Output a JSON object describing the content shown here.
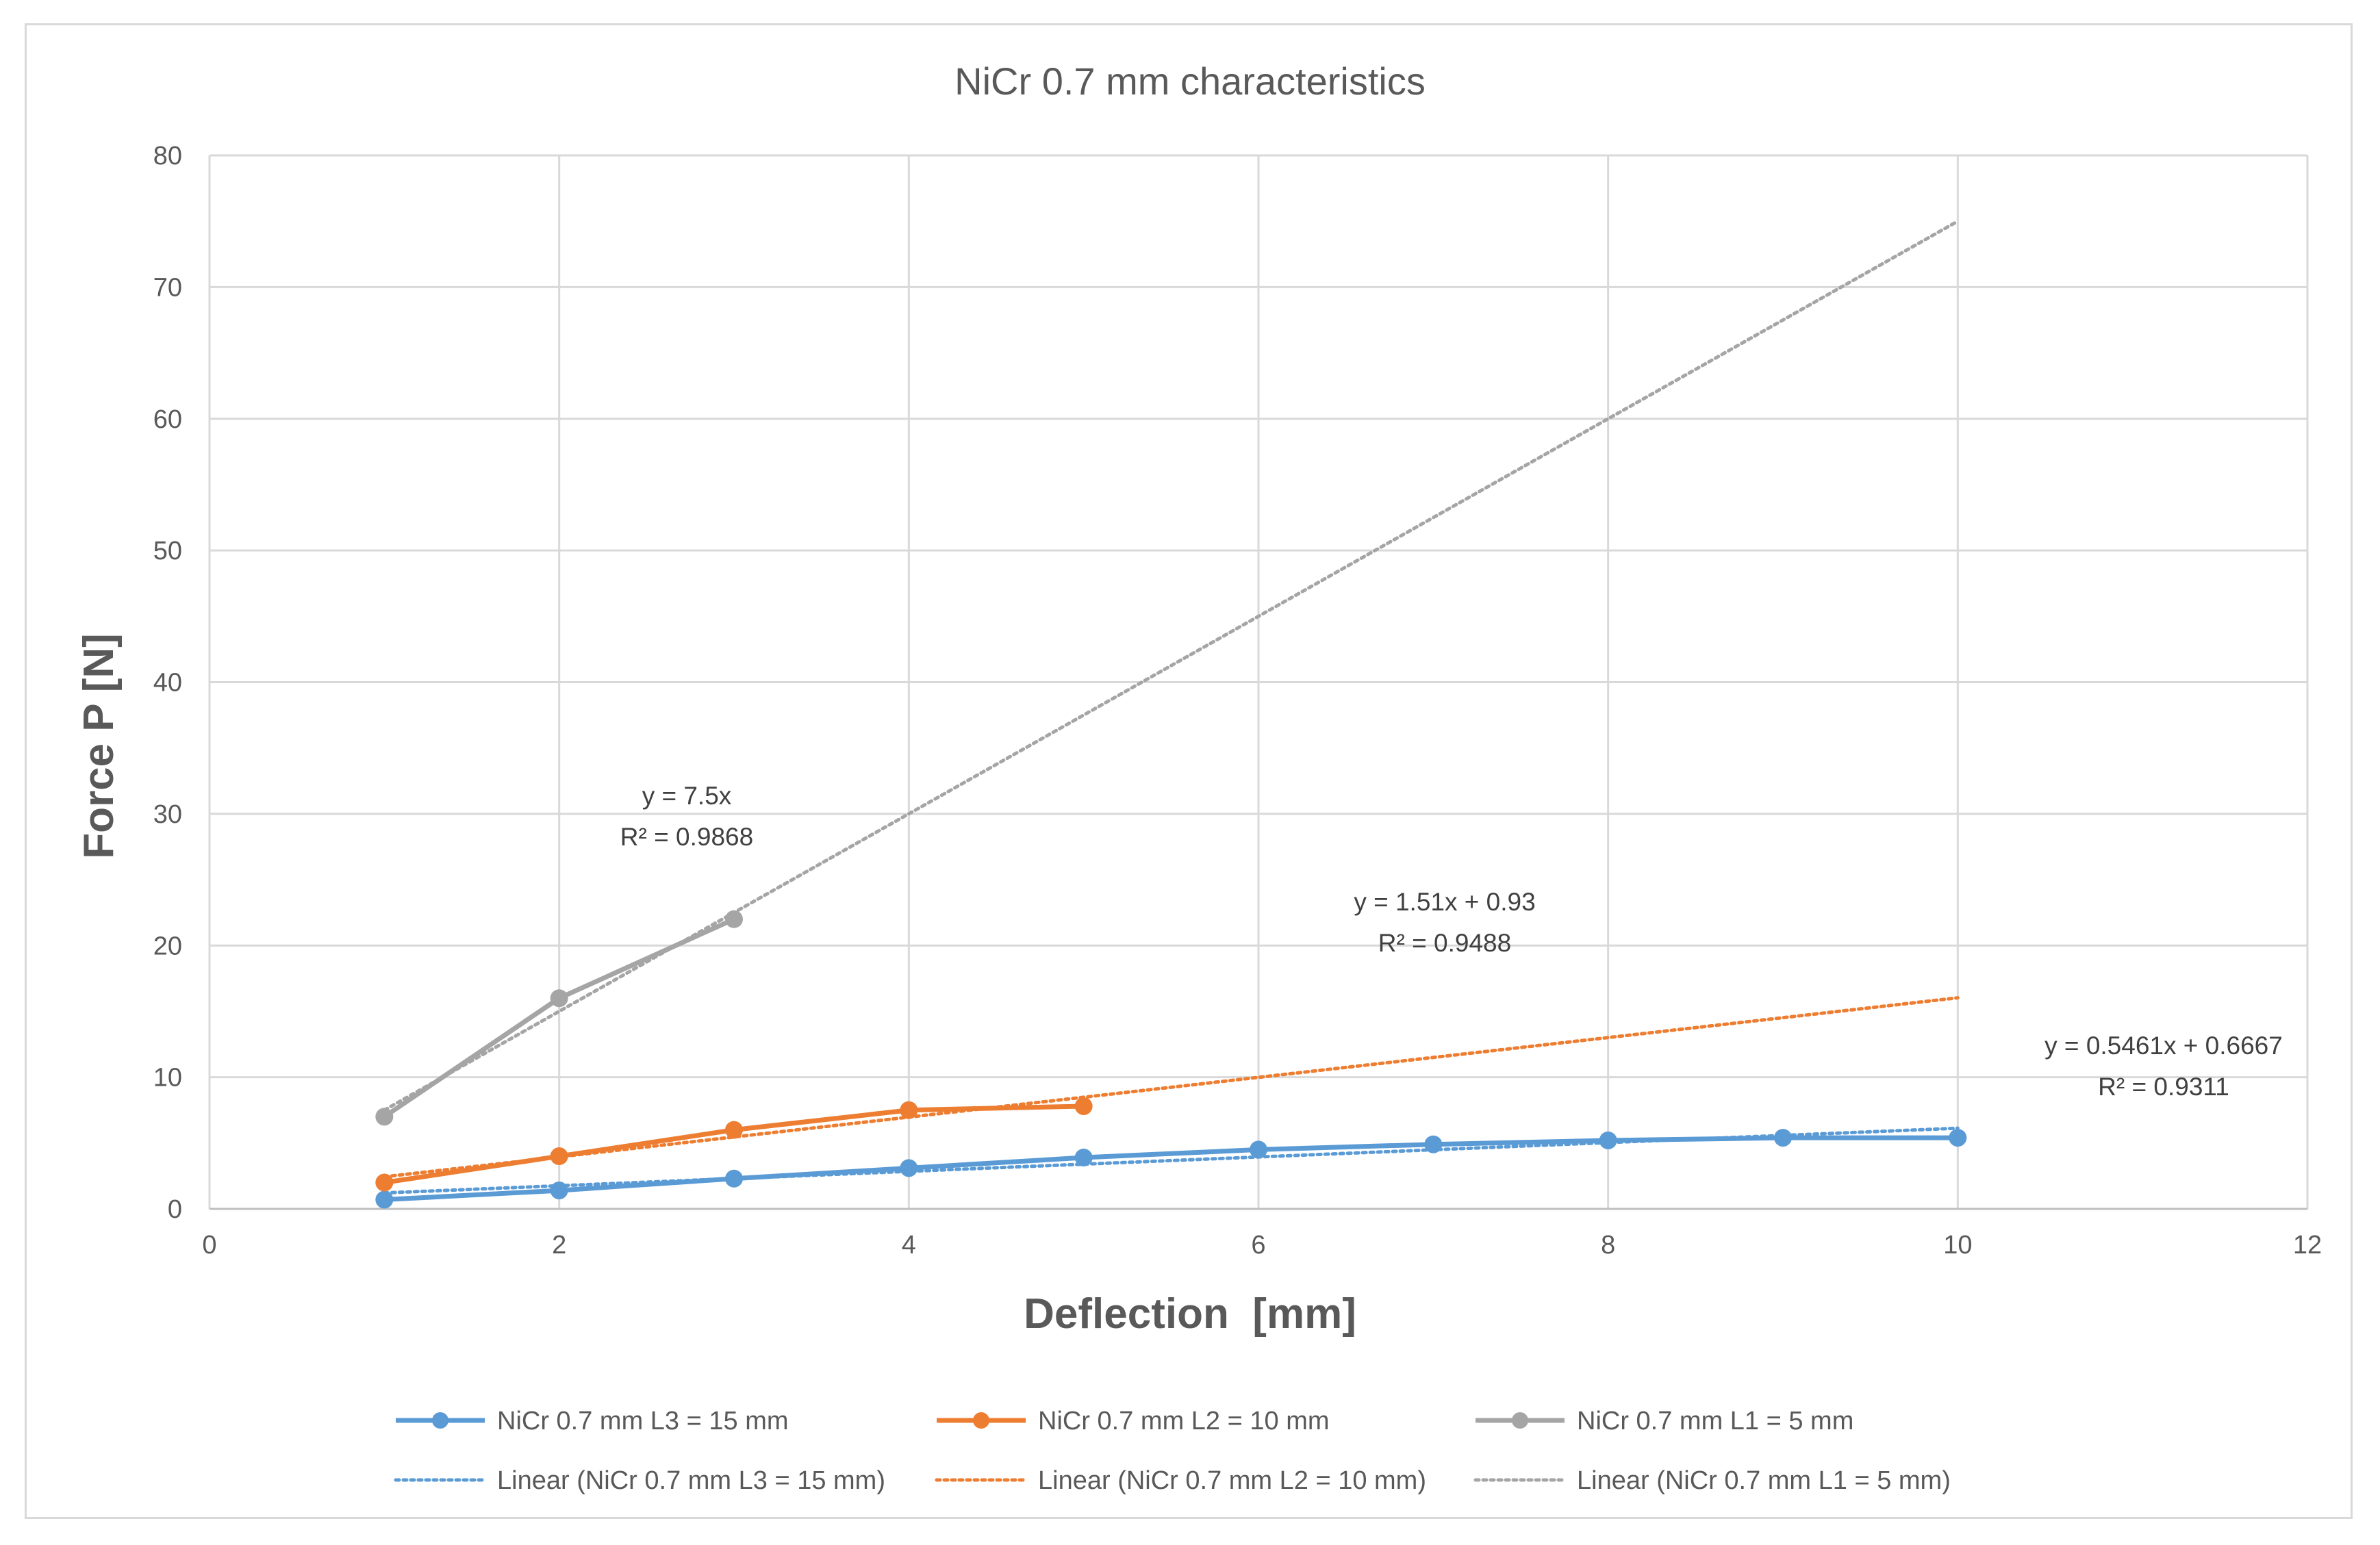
{
  "chart_data": {
    "type": "line",
    "title": "NiCr 0.7 mm characteristics",
    "xlabel": "Deflection  [mm]",
    "ylabel": "Force P [N]",
    "xlim": [
      0,
      12
    ],
    "ylim": [
      0,
      80
    ],
    "x_ticks": [
      0,
      2,
      4,
      6,
      8,
      10,
      12
    ],
    "y_ticks": [
      0,
      10,
      20,
      30,
      40,
      50,
      60,
      70,
      80
    ],
    "x_tick_labels": [
      "0",
      "2",
      "4",
      "6",
      "8",
      "10",
      "12"
    ],
    "y_tick_labels": [
      "0",
      "10",
      "20",
      "30",
      "40",
      "50",
      "60",
      "70",
      "80"
    ],
    "grid": true,
    "legend_position": "bottom",
    "series": [
      {
        "name": "NiCr 0.7 mm L3 = 15 mm",
        "color": "#5b9bd5",
        "x": [
          1,
          2,
          3,
          4,
          5,
          6,
          7,
          8,
          9,
          10
        ],
        "y": [
          0.7,
          1.4,
          2.3,
          3.1,
          3.9,
          4.5,
          4.9,
          5.2,
          5.4,
          5.4
        ],
        "trendline": {
          "name": "Linear (NiCr 0.7 mm L3 = 15 mm)",
          "slope": 0.5461,
          "intercept": 0.6667,
          "x_range": [
            1,
            10
          ],
          "equation": "y = 0.5461x + 0.6667",
          "r2": "R² = 0.9311"
        }
      },
      {
        "name": "NiCr 0.7 mm L2 = 10 mm",
        "color": "#ed7d31",
        "x": [
          1,
          2,
          3,
          4,
          5
        ],
        "y": [
          2.0,
          4.0,
          6.0,
          7.5,
          7.8
        ],
        "trendline": {
          "name": "Linear (NiCr 0.7 mm L2 = 10 mm)",
          "slope": 1.51,
          "intercept": 0.93,
          "x_range": [
            1,
            10
          ],
          "equation": "y = 1.51x + 0.93",
          "r2": "R² = 0.9488"
        }
      },
      {
        "name": "NiCr 0.7 mm L1 = 5 mm",
        "color": "#a5a5a5",
        "x": [
          1,
          2,
          3
        ],
        "y": [
          7.0,
          16.0,
          22.0
        ],
        "trendline": {
          "name": "Linear (NiCr 0.7 mm L1 = 5 mm)",
          "slope": 7.5,
          "intercept": 0,
          "x_range": [
            1,
            10
          ],
          "equation": "y = 7.5x",
          "r2": "R² = 0.9868"
        }
      }
    ]
  },
  "colors": {
    "grid": "#d9d9d9",
    "axis": "#bfbfbf",
    "title": "#595959",
    "tick": "#595959",
    "axis_label": "#595959",
    "annotation": "#404040"
  }
}
